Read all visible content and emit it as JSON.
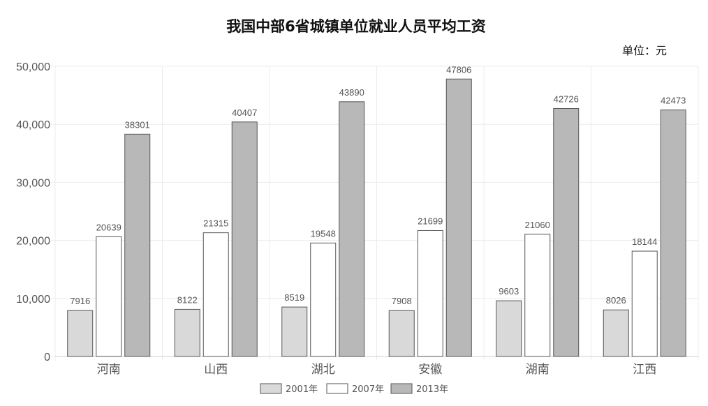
{
  "chart_data": {
    "type": "bar",
    "title": "我国中部6省城镇单位就业人员平均工资",
    "unit_label": "单位：元",
    "categories": [
      "河南",
      "山西",
      "湖北",
      "安徽",
      "湖南",
      "江西"
    ],
    "series": [
      {
        "name": "2001年",
        "color": "#d9d9d9",
        "values": [
          7916,
          8122,
          8519,
          7908,
          9603,
          8026
        ]
      },
      {
        "name": "2007年",
        "color": "#ffffff",
        "values": [
          20639,
          21315,
          19548,
          21699,
          21060,
          18144
        ]
      },
      {
        "name": "2013年",
        "color": "#b8b8b8",
        "values": [
          38301,
          40407,
          43890,
          47806,
          42726,
          42473
        ]
      }
    ],
    "ylim": [
      0,
      50000
    ],
    "yticks": [
      "0",
      "10,000",
      "20,000",
      "30,000",
      "40,000",
      "50,000"
    ],
    "grid": true,
    "legend_position": "bottom"
  }
}
